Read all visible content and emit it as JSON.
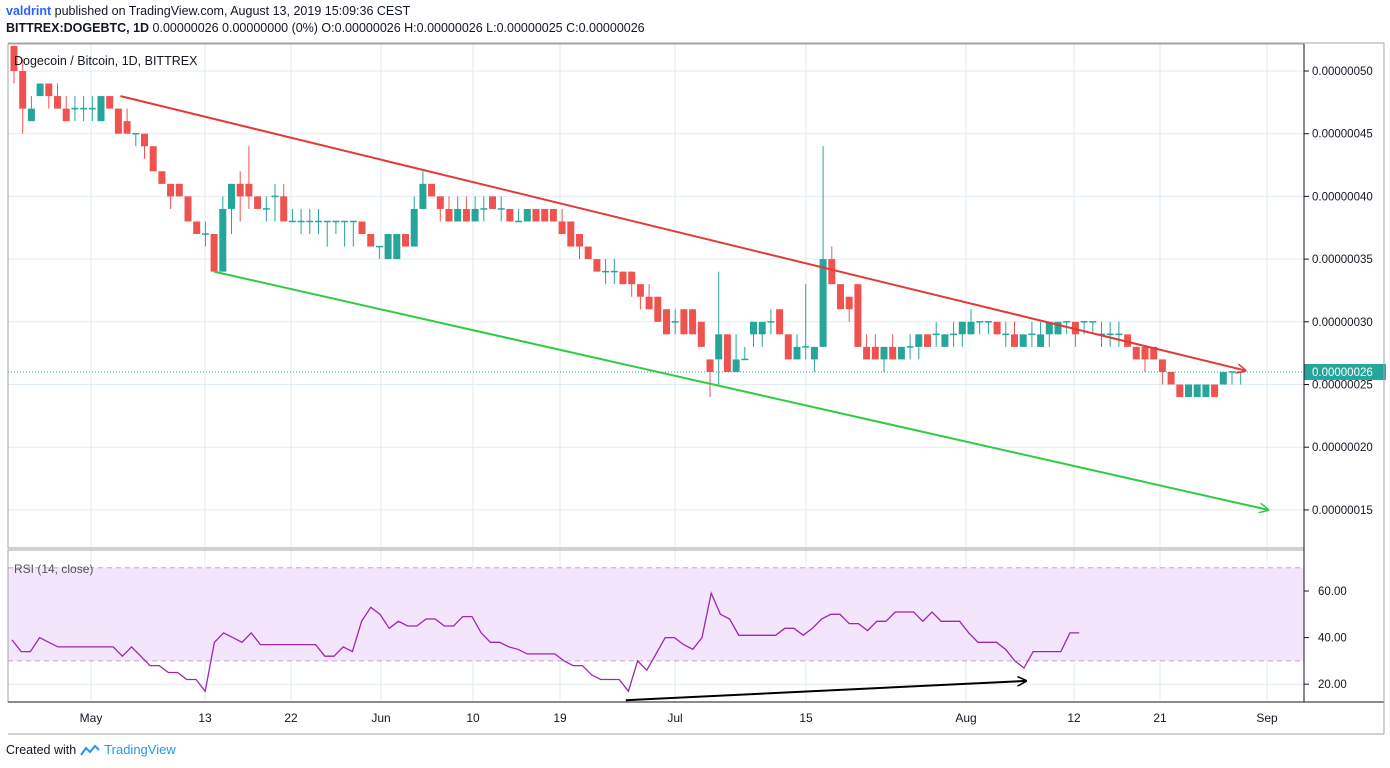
{
  "header": {
    "author": "valdrint",
    "published_text": "published on TradingView.com, August 13, 2019 15:09:36 CEST",
    "symbol": "BITTREX:DOGEBTC, 1D",
    "ohlc_text": "0.00000026 0.00000000 (0%) O:0.00000026 H:0.00000026 L:0.00000025 C:0.00000026"
  },
  "footer": {
    "created_with": "Created with",
    "brand": "TradingView"
  },
  "colors": {
    "up": "#26a69a",
    "down": "#ef5350",
    "resistance": "#e53935",
    "support": "#2ecc40",
    "rsi_line": "#9c27b0",
    "rsi_band": "#f3e5fb",
    "divergence": "#000000"
  },
  "chart_data": [
    {
      "type": "candlestick",
      "title": "Dogecoin / Bitcoin, 1D, BITTREX",
      "ylim": [
        1.1e-07,
        5.2e-07
      ],
      "y_ticks": [
        "0.00000050",
        "0.00000045",
        "0.00000040",
        "0.00000035",
        "0.00000030",
        "0.00000025",
        "0.00000020",
        "0.00000015"
      ],
      "x_ticks": [
        "May",
        "13",
        "22",
        "Jun",
        "10",
        "19",
        "Jul",
        "15",
        "Aug",
        "12",
        "21",
        "Sep"
      ],
      "last_price_label": "0.00000026",
      "candles": [
        {
          "o": 52,
          "h": 52,
          "l": 49,
          "c": 50
        },
        {
          "o": 50,
          "h": 51,
          "l": 45,
          "c": 47
        },
        {
          "o": 46,
          "h": 48,
          "l": 46,
          "c": 47
        },
        {
          "o": 48,
          "h": 49,
          "l": 48,
          "c": 49
        },
        {
          "o": 49,
          "h": 49,
          "l": 47,
          "c": 48
        },
        {
          "o": 48,
          "h": 49,
          "l": 47,
          "c": 47
        },
        {
          "o": 47,
          "h": 48,
          "l": 46,
          "c": 46
        },
        {
          "o": 47,
          "h": 48,
          "l": 46,
          "c": 47
        },
        {
          "o": 47,
          "h": 48,
          "l": 46,
          "c": 47
        },
        {
          "o": 47,
          "h": 48,
          "l": 46,
          "c": 47
        },
        {
          "o": 46,
          "h": 48,
          "l": 46,
          "c": 48
        },
        {
          "o": 48,
          "h": 48,
          "l": 47,
          "c": 47
        },
        {
          "o": 47,
          "h": 47,
          "l": 45,
          "c": 45
        },
        {
          "o": 46,
          "h": 47,
          "l": 45,
          "c": 45
        },
        {
          "o": 45,
          "h": 45,
          "l": 44,
          "c": 45
        },
        {
          "o": 45,
          "h": 45,
          "l": 43,
          "c": 44
        },
        {
          "o": 44,
          "h": 44,
          "l": 42,
          "c": 42
        },
        {
          "o": 42,
          "h": 42,
          "l": 41,
          "c": 41
        },
        {
          "o": 41,
          "h": 41,
          "l": 39,
          "c": 40
        },
        {
          "o": 41,
          "h": 41,
          "l": 40,
          "c": 40
        },
        {
          "o": 40,
          "h": 40,
          "l": 38,
          "c": 38
        },
        {
          "o": 38,
          "h": 38,
          "l": 37,
          "c": 37
        },
        {
          "o": 37,
          "h": 38,
          "l": 36,
          "c": 37
        },
        {
          "o": 37,
          "h": 37,
          "l": 34,
          "c": 34
        },
        {
          "o": 34,
          "h": 40,
          "l": 34,
          "c": 39
        },
        {
          "o": 39,
          "h": 41,
          "l": 37,
          "c": 41
        },
        {
          "o": 41,
          "h": 42,
          "l": 38,
          "c": 40
        },
        {
          "o": 41,
          "h": 44,
          "l": 39,
          "c": 40
        },
        {
          "o": 40,
          "h": 40,
          "l": 39,
          "c": 39
        },
        {
          "o": 39,
          "h": 40,
          "l": 38,
          "c": 39
        },
        {
          "o": 40,
          "h": 41,
          "l": 38,
          "c": 40
        },
        {
          "o": 40,
          "h": 41,
          "l": 38,
          "c": 38
        },
        {
          "o": 38,
          "h": 39,
          "l": 38,
          "c": 38
        },
        {
          "o": 38,
          "h": 39,
          "l": 37,
          "c": 38
        },
        {
          "o": 38,
          "h": 39,
          "l": 37,
          "c": 38
        },
        {
          "o": 38,
          "h": 39,
          "l": 37,
          "c": 38
        },
        {
          "o": 38,
          "h": 38,
          "l": 36,
          "c": 38
        },
        {
          "o": 38,
          "h": 38,
          "l": 37,
          "c": 38
        },
        {
          "o": 38,
          "h": 38,
          "l": 36,
          "c": 38
        },
        {
          "o": 38,
          "h": 38,
          "l": 36,
          "c": 38
        },
        {
          "o": 38,
          "h": 38,
          "l": 37,
          "c": 37
        },
        {
          "o": 37,
          "h": 37,
          "l": 36,
          "c": 36
        },
        {
          "o": 36,
          "h": 36,
          "l": 35,
          "c": 36
        },
        {
          "o": 35,
          "h": 37,
          "l": 35,
          "c": 37
        },
        {
          "o": 35,
          "h": 37,
          "l": 35,
          "c": 37
        },
        {
          "o": 37,
          "h": 37,
          "l": 36,
          "c": 36
        },
        {
          "o": 36,
          "h": 40,
          "l": 36,
          "c": 39
        },
        {
          "o": 39,
          "h": 42,
          "l": 39,
          "c": 41
        },
        {
          "o": 41,
          "h": 41,
          "l": 40,
          "c": 40
        },
        {
          "o": 40,
          "h": 40,
          "l": 38,
          "c": 39
        },
        {
          "o": 39,
          "h": 40,
          "l": 38,
          "c": 38
        },
        {
          "o": 38,
          "h": 40,
          "l": 38,
          "c": 39
        },
        {
          "o": 39,
          "h": 40,
          "l": 38,
          "c": 38
        },
        {
          "o": 38,
          "h": 40,
          "l": 38,
          "c": 39
        },
        {
          "o": 39,
          "h": 40,
          "l": 38,
          "c": 39
        },
        {
          "o": 40,
          "h": 40,
          "l": 39,
          "c": 39
        },
        {
          "o": 39,
          "h": 40,
          "l": 38,
          "c": 39
        },
        {
          "o": 39,
          "h": 39,
          "l": 38,
          "c": 38
        },
        {
          "o": 38,
          "h": 39,
          "l": 38,
          "c": 38
        },
        {
          "o": 38,
          "h": 39,
          "l": 38,
          "c": 39
        },
        {
          "o": 39,
          "h": 39,
          "l": 38,
          "c": 38
        },
        {
          "o": 39,
          "h": 39,
          "l": 38,
          "c": 38
        },
        {
          "o": 39,
          "h": 39,
          "l": 38,
          "c": 38
        },
        {
          "o": 38,
          "h": 39,
          "l": 37,
          "c": 37
        },
        {
          "o": 38,
          "h": 38,
          "l": 36,
          "c": 36
        },
        {
          "o": 37,
          "h": 37,
          "l": 35,
          "c": 36
        },
        {
          "o": 36,
          "h": 36,
          "l": 35,
          "c": 35
        },
        {
          "o": 35,
          "h": 35,
          "l": 34,
          "c": 34
        },
        {
          "o": 34,
          "h": 35,
          "l": 33,
          "c": 34
        },
        {
          "o": 34,
          "h": 35,
          "l": 33,
          "c": 34
        },
        {
          "o": 34,
          "h": 34,
          "l": 33,
          "c": 33
        },
        {
          "o": 34,
          "h": 34,
          "l": 32,
          "c": 33
        },
        {
          "o": 33,
          "h": 33,
          "l": 31,
          "c": 32
        },
        {
          "o": 32,
          "h": 33,
          "l": 31,
          "c": 31
        },
        {
          "o": 32,
          "h": 32,
          "l": 30,
          "c": 30
        },
        {
          "o": 31,
          "h": 31,
          "l": 29,
          "c": 29
        },
        {
          "o": 30,
          "h": 31,
          "l": 29,
          "c": 30
        },
        {
          "o": 31,
          "h": 31,
          "l": 29,
          "c": 29
        },
        {
          "o": 31,
          "h": 31,
          "l": 29,
          "c": 29
        },
        {
          "o": 30,
          "h": 30,
          "l": 28,
          "c": 28
        },
        {
          "o": 27,
          "h": 27,
          "l": 24,
          "c": 26
        },
        {
          "o": 27,
          "h": 34,
          "l": 25,
          "c": 29
        },
        {
          "o": 29,
          "h": 29,
          "l": 26,
          "c": 26
        },
        {
          "o": 26,
          "h": 29,
          "l": 26,
          "c": 27
        },
        {
          "o": 27,
          "h": 28,
          "l": 27,
          "c": 27
        },
        {
          "o": 29,
          "h": 30,
          "l": 28,
          "c": 30
        },
        {
          "o": 29,
          "h": 30,
          "l": 28,
          "c": 30
        },
        {
          "o": 30,
          "h": 31,
          "l": 29,
          "c": 30
        },
        {
          "o": 31,
          "h": 31,
          "l": 29,
          "c": 29
        },
        {
          "o": 29,
          "h": 29,
          "l": 27,
          "c": 27
        },
        {
          "o": 27,
          "h": 29,
          "l": 27,
          "c": 28
        },
        {
          "o": 28,
          "h": 33,
          "l": 27,
          "c": 28
        },
        {
          "o": 27,
          "h": 28,
          "l": 26,
          "c": 28
        },
        {
          "o": 28,
          "h": 44,
          "l": 28,
          "c": 35
        },
        {
          "o": 35,
          "h": 36,
          "l": 33,
          "c": 33
        },
        {
          "o": 33,
          "h": 33,
          "l": 31,
          "c": 31
        },
        {
          "o": 32,
          "h": 32,
          "l": 30,
          "c": 31
        },
        {
          "o": 33,
          "h": 33,
          "l": 28,
          "c": 28
        },
        {
          "o": 28,
          "h": 29,
          "l": 27,
          "c": 27
        },
        {
          "o": 28,
          "h": 29,
          "l": 27,
          "c": 27
        },
        {
          "o": 27,
          "h": 28,
          "l": 26,
          "c": 28
        },
        {
          "o": 28,
          "h": 29,
          "l": 27,
          "c": 27
        },
        {
          "o": 27,
          "h": 28,
          "l": 27,
          "c": 28
        },
        {
          "o": 28,
          "h": 29,
          "l": 27,
          "c": 28
        },
        {
          "o": 28,
          "h": 29,
          "l": 27,
          "c": 29
        },
        {
          "o": 29,
          "h": 29,
          "l": 28,
          "c": 28
        },
        {
          "o": 29,
          "h": 30,
          "l": 28,
          "c": 29
        },
        {
          "o": 28,
          "h": 29,
          "l": 28,
          "c": 29
        },
        {
          "o": 29,
          "h": 30,
          "l": 28,
          "c": 29
        },
        {
          "o": 29,
          "h": 30,
          "l": 28,
          "c": 30
        },
        {
          "o": 29,
          "h": 31,
          "l": 29,
          "c": 30
        },
        {
          "o": 30,
          "h": 30,
          "l": 29,
          "c": 30
        },
        {
          "o": 30,
          "h": 30,
          "l": 29,
          "c": 30
        },
        {
          "o": 30,
          "h": 30,
          "l": 29,
          "c": 29
        },
        {
          "o": 29,
          "h": 30,
          "l": 28,
          "c": 29
        },
        {
          "o": 29,
          "h": 30,
          "l": 28,
          "c": 28
        },
        {
          "o": 28,
          "h": 29,
          "l": 28,
          "c": 29
        },
        {
          "o": 29,
          "h": 30,
          "l": 28,
          "c": 29
        },
        {
          "o": 28,
          "h": 30,
          "l": 28,
          "c": 29
        },
        {
          "o": 29,
          "h": 30,
          "l": 28,
          "c": 30
        },
        {
          "o": 29,
          "h": 30,
          "l": 29,
          "c": 30
        },
        {
          "o": 30,
          "h": 30,
          "l": 29,
          "c": 30
        },
        {
          "o": 30,
          "h": 30,
          "l": 28,
          "c": 29
        },
        {
          "o": 30,
          "h": 30,
          "l": 29,
          "c": 30
        },
        {
          "o": 30,
          "h": 30,
          "l": 29,
          "c": 30
        },
        {
          "o": 29,
          "h": 30,
          "l": 28,
          "c": 29
        },
        {
          "o": 29,
          "h": 30,
          "l": 28,
          "c": 29
        },
        {
          "o": 29,
          "h": 30,
          "l": 28,
          "c": 29
        },
        {
          "o": 29,
          "h": 29,
          "l": 28,
          "c": 28
        },
        {
          "o": 28,
          "h": 28,
          "l": 27,
          "c": 27
        },
        {
          "o": 28,
          "h": 28,
          "l": 26,
          "c": 27
        },
        {
          "o": 28,
          "h": 28,
          "l": 27,
          "c": 27
        },
        {
          "o": 27,
          "h": 27,
          "l": 25,
          "c": 26
        },
        {
          "o": 26,
          "h": 26,
          "l": 25,
          "c": 25
        },
        {
          "o": 25,
          "h": 25,
          "l": 24,
          "c": 24
        },
        {
          "o": 24,
          "h": 25,
          "l": 24,
          "c": 25
        },
        {
          "o": 24,
          "h": 25,
          "l": 24,
          "c": 25
        },
        {
          "o": 24,
          "h": 25,
          "l": 24,
          "c": 25
        },
        {
          "o": 25,
          "h": 25,
          "l": 24,
          "c": 24
        },
        {
          "o": 25,
          "h": 26,
          "l": 25,
          "c": 26
        },
        {
          "o": 26,
          "h": 26,
          "l": 25,
          "c": 26
        },
        {
          "o": 26,
          "h": 26,
          "l": 25,
          "c": 26
        }
      ],
      "price_scale": 1e-08,
      "annotations": [
        {
          "name": "resistance-line",
          "from": [
            12,
            4.8e-07
          ],
          "to": [
            165,
            2.3e-07
          ]
        },
        {
          "name": "support-line",
          "from": [
            23,
            3.4e-07
          ],
          "to": [
            146,
            1.5e-07
          ]
        }
      ]
    },
    {
      "type": "line",
      "title": "RSI (14, close)",
      "ylim": [
        8,
        72
      ],
      "y_ticks": [
        "60.00",
        "40.00",
        "20.00"
      ],
      "band": [
        30,
        70
      ],
      "values": [
        39,
        34,
        34,
        40,
        38,
        36,
        36,
        36,
        36,
        36,
        36,
        36,
        32,
        36,
        32,
        28,
        28,
        25,
        25,
        22,
        22,
        17,
        38,
        42,
        40,
        38,
        42,
        37,
        37,
        37,
        37,
        37,
        37,
        37,
        32,
        32,
        36,
        34,
        47,
        53,
        50,
        44,
        47,
        45,
        45,
        48,
        48,
        45,
        45,
        49,
        49,
        42,
        38,
        38,
        36,
        35,
        33,
        33,
        33,
        33,
        30,
        28,
        28,
        24,
        22,
        22,
        22,
        17,
        30,
        26,
        33,
        40,
        40,
        37,
        35,
        40,
        59,
        50,
        48,
        41,
        41,
        41,
        41,
        41,
        44,
        44,
        41,
        44,
        48,
        50,
        50,
        46,
        46,
        43,
        47,
        47,
        51,
        51,
        51,
        47,
        51,
        47,
        47,
        47,
        42,
        38,
        38,
        38,
        35,
        30,
        27,
        34,
        34,
        34,
        34,
        42,
        42
      ],
      "divergence_arrow": {
        "from": [
          69,
          17
        ],
        "to": [
          115,
          24
        ]
      }
    }
  ]
}
